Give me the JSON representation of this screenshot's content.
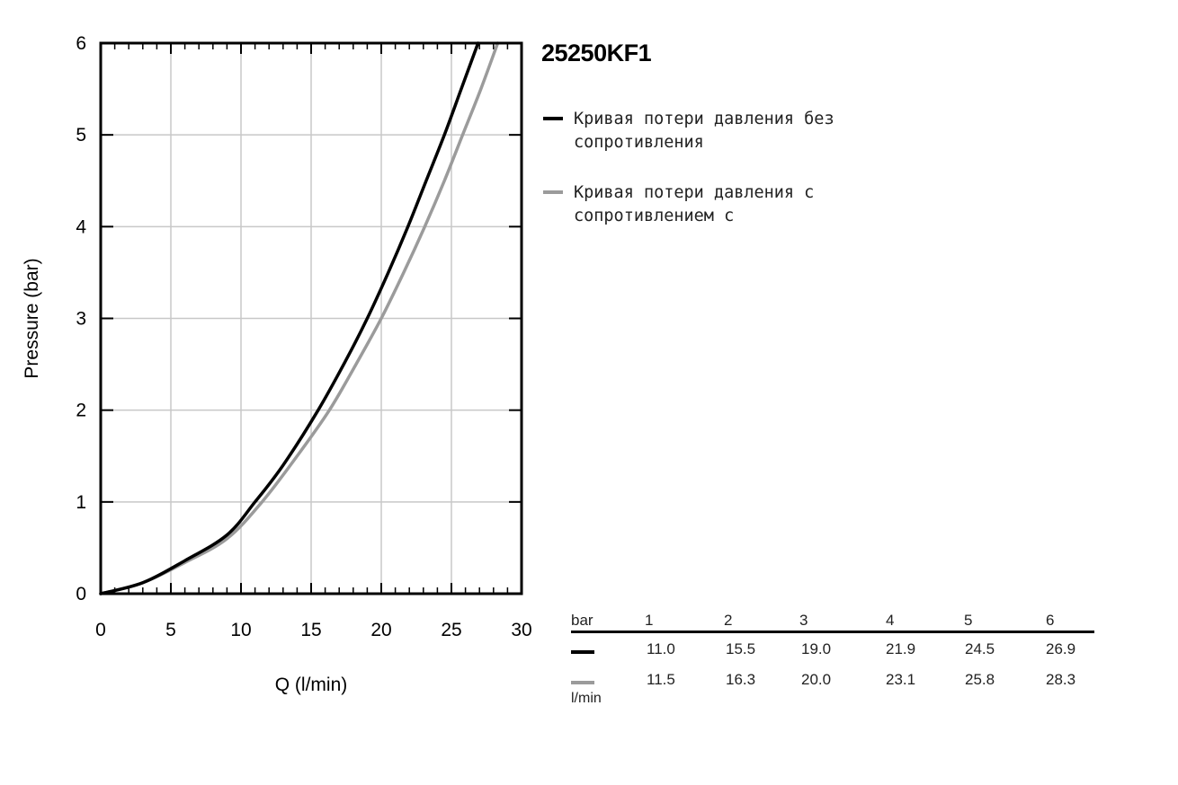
{
  "chart_data": {
    "type": "line",
    "xlabel": "Q (l/min)",
    "ylabel": "Pressure (bar)",
    "xlim": [
      0,
      30
    ],
    "ylim": [
      0,
      6
    ],
    "xticks": [
      "0",
      "5",
      "10",
      "15",
      "20",
      "25",
      "30"
    ],
    "yticks": [
      "0",
      "1",
      "2",
      "3",
      "4",
      "5",
      "6"
    ],
    "grid": true,
    "legend_position": "right",
    "series": [
      {
        "name": "Кривая потери давления без сопротивления",
        "color": "#000000",
        "points": [
          [
            0,
            0
          ],
          [
            3,
            0.12
          ],
          [
            6,
            0.36
          ],
          [
            9,
            0.64
          ],
          [
            11.0,
            1
          ],
          [
            13,
            1.4
          ],
          [
            15.5,
            2
          ],
          [
            17.5,
            2.55
          ],
          [
            19.0,
            3
          ],
          [
            20.5,
            3.5
          ],
          [
            21.9,
            4
          ],
          [
            23.2,
            4.5
          ],
          [
            24.5,
            5
          ],
          [
            25.7,
            5.5
          ],
          [
            26.9,
            6
          ]
        ]
      },
      {
        "name": "Кривая потери давления с сопротивлением с",
        "color": "#9b9b9b",
        "points": [
          [
            0,
            0
          ],
          [
            3,
            0.12
          ],
          [
            6,
            0.34
          ],
          [
            9,
            0.6
          ],
          [
            11.5,
            1
          ],
          [
            14,
            1.5
          ],
          [
            16.3,
            2
          ],
          [
            18.2,
            2.5
          ],
          [
            20.0,
            3
          ],
          [
            21.6,
            3.5
          ],
          [
            23.1,
            4
          ],
          [
            24.5,
            4.5
          ],
          [
            25.8,
            5
          ],
          [
            27.1,
            5.5
          ],
          [
            28.3,
            6
          ]
        ]
      }
    ]
  },
  "product": {
    "title": "25250KF1"
  },
  "legend": {
    "items": [
      {
        "label": "Кривая потери давления без сопротивления",
        "color": "#000000"
      },
      {
        "label": "Кривая потери давления с сопротивлением с",
        "color": "#9b9b9b"
      }
    ]
  },
  "table": {
    "header_label": "bar",
    "unit_label": "l/min",
    "columns": [
      "1",
      "2",
      "3",
      "4",
      "5",
      "6"
    ],
    "rows": [
      {
        "color": "#000000",
        "values": [
          "11.0",
          "15.5",
          "19.0",
          "21.9",
          "24.5",
          "26.9"
        ]
      },
      {
        "color": "#9b9b9b",
        "values": [
          "11.5",
          "16.3",
          "20.0",
          "23.1",
          "25.8",
          "28.3"
        ]
      }
    ]
  }
}
